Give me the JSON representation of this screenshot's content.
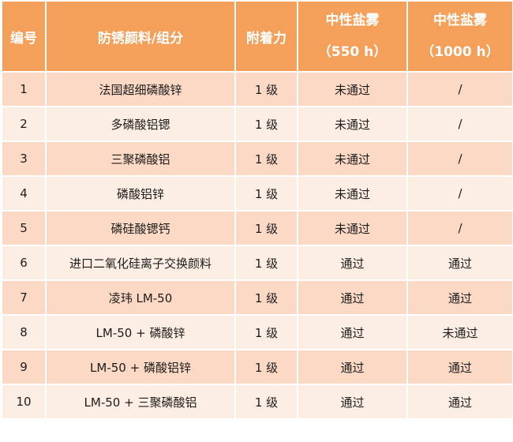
{
  "table": {
    "headers": {
      "id": "编号",
      "pigment": "防锈颜料/组分",
      "adhesion": "附着力",
      "salt_550": [
        "中性盐雾",
        "（550 h）"
      ],
      "salt_1000": [
        "中性盐雾",
        "（1000 h）"
      ]
    },
    "rows": [
      {
        "id": "1",
        "pigment": "法国超细磷酸锌",
        "adhesion": "1 级",
        "salt_550": "未通过",
        "salt_1000": "/"
      },
      {
        "id": "2",
        "pigment": "多磷酸铝锶",
        "adhesion": "1 级",
        "salt_550": "未通过",
        "salt_1000": "/"
      },
      {
        "id": "3",
        "pigment": "三聚磷酸铝",
        "adhesion": "1 级",
        "salt_550": "未通过",
        "salt_1000": "/"
      },
      {
        "id": "4",
        "pigment": "磷酸铝锌",
        "adhesion": "1 级",
        "salt_550": "未通过",
        "salt_1000": "/"
      },
      {
        "id": "5",
        "pigment": "磷硅酸锶钙",
        "adhesion": "1 级",
        "salt_550": "未通过",
        "salt_1000": "/"
      },
      {
        "id": "6",
        "pigment": "进口二氧化硅离子交换颜料",
        "adhesion": "1 级",
        "salt_550": "通过",
        "salt_1000": "通过"
      },
      {
        "id": "7",
        "pigment": "凌玮 LM-50",
        "adhesion": "1 级",
        "salt_550": "通过",
        "salt_1000": "通过"
      },
      {
        "id": "8",
        "pigment": "LM-50 + 磷酸锌",
        "adhesion": "1 级",
        "salt_550": "通过",
        "salt_1000": "未通过"
      },
      {
        "id": "9",
        "pigment": "LM-50 + 磷酸铝锌",
        "adhesion": "1 级",
        "salt_550": "通过",
        "salt_1000": "通过"
      },
      {
        "id": "10",
        "pigment": "LM-50 + 三聚磷酸铝",
        "adhesion": "1 级",
        "salt_550": "通过",
        "salt_1000": "通过"
      }
    ]
  }
}
